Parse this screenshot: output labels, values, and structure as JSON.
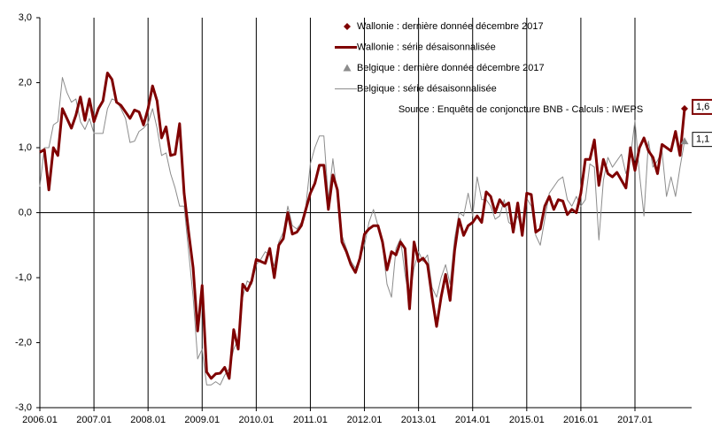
{
  "chart_data": {
    "type": "line",
    "annotation": "Source : Enquête de conjoncture BNB - Calculs : IWEPS",
    "categories": [
      "2006.01",
      null,
      null,
      null,
      null,
      null,
      null,
      null,
      null,
      null,
      null,
      null,
      "2007.01",
      null,
      null,
      null,
      null,
      null,
      null,
      null,
      null,
      null,
      null,
      null,
      "2008.01",
      null,
      null,
      null,
      null,
      null,
      null,
      null,
      null,
      null,
      null,
      null,
      "2009.01",
      null,
      null,
      null,
      null,
      null,
      null,
      null,
      null,
      null,
      null,
      null,
      "2010.01",
      null,
      null,
      null,
      null,
      null,
      null,
      null,
      null,
      null,
      null,
      null,
      "2011.01",
      null,
      null,
      null,
      null,
      null,
      null,
      null,
      null,
      null,
      null,
      null,
      "2012.01",
      null,
      null,
      null,
      null,
      null,
      null,
      null,
      null,
      null,
      null,
      null,
      "2013.01",
      null,
      null,
      null,
      null,
      null,
      null,
      null,
      null,
      null,
      null,
      null,
      "2014.01",
      null,
      null,
      null,
      null,
      null,
      null,
      null,
      null,
      null,
      null,
      null,
      "2015.01",
      null,
      null,
      null,
      null,
      null,
      null,
      null,
      null,
      null,
      null,
      null,
      "2016.01",
      null,
      null,
      null,
      null,
      null,
      null,
      null,
      null,
      null,
      null,
      null,
      "2017.01",
      null,
      null,
      null,
      null,
      null,
      null,
      null,
      null,
      null,
      null,
      null
    ],
    "ylim": [
      -3,
      3
    ],
    "yticks": [
      {
        "value": 3,
        "label": "3,0"
      },
      {
        "value": 2,
        "label": "2,0"
      },
      {
        "value": 1,
        "label": "1,0"
      },
      {
        "value": 0,
        "label": "0,0"
      },
      {
        "value": -1,
        "label": "-1,0"
      },
      {
        "value": -2,
        "label": "-2,0"
      },
      {
        "value": -3,
        "label": "-3,0"
      }
    ],
    "series": [
      {
        "name": "Wallonie : dernière donnée décembre 2017",
        "color": "#7f0000",
        "marker": "diamond",
        "values": [
          null,
          null,
          null,
          null,
          null,
          null,
          null,
          null,
          null,
          null,
          null,
          null,
          null,
          null,
          null,
          null,
          null,
          null,
          null,
          null,
          null,
          null,
          null,
          null,
          null,
          null,
          null,
          null,
          null,
          null,
          null,
          null,
          null,
          null,
          null,
          null,
          null,
          null,
          null,
          null,
          null,
          null,
          null,
          null,
          null,
          null,
          null,
          null,
          null,
          null,
          null,
          null,
          null,
          null,
          null,
          null,
          null,
          null,
          null,
          null,
          null,
          null,
          null,
          null,
          null,
          null,
          null,
          null,
          null,
          null,
          null,
          null,
          null,
          null,
          null,
          null,
          null,
          null,
          null,
          null,
          null,
          null,
          null,
          null,
          null,
          null,
          null,
          null,
          null,
          null,
          null,
          null,
          null,
          null,
          null,
          null,
          null,
          null,
          null,
          null,
          null,
          null,
          null,
          null,
          null,
          null,
          null,
          null,
          null,
          null,
          null,
          null,
          null,
          null,
          null,
          null,
          null,
          null,
          null,
          null,
          null,
          null,
          null,
          null,
          null,
          null,
          null,
          null,
          null,
          null,
          null,
          null,
          null,
          null,
          null,
          null,
          null,
          null,
          null,
          null,
          null,
          null,
          null,
          1.6
        ],
        "value_labels": [
          null,
          null,
          null,
          null,
          null,
          null,
          null,
          null,
          null,
          null,
          null,
          null,
          null,
          null,
          null,
          null,
          null,
          null,
          null,
          null,
          null,
          null,
          null,
          null,
          null,
          null,
          null,
          null,
          null,
          null,
          null,
          null,
          null,
          null,
          null,
          null,
          null,
          null,
          null,
          null,
          null,
          null,
          null,
          null,
          null,
          null,
          null,
          null,
          null,
          null,
          null,
          null,
          null,
          null,
          null,
          null,
          null,
          null,
          null,
          null,
          null,
          null,
          null,
          null,
          null,
          null,
          null,
          null,
          null,
          null,
          null,
          null,
          null,
          null,
          null,
          null,
          null,
          null,
          null,
          null,
          null,
          null,
          null,
          null,
          null,
          null,
          null,
          null,
          null,
          null,
          null,
          null,
          null,
          null,
          null,
          null,
          null,
          null,
          null,
          null,
          null,
          null,
          null,
          null,
          null,
          null,
          null,
          null,
          null,
          null,
          null,
          null,
          null,
          null,
          null,
          null,
          null,
          null,
          null,
          null,
          null,
          null,
          null,
          null,
          null,
          null,
          null,
          null,
          null,
          null,
          null,
          null,
          null,
          null,
          null,
          null,
          null,
          null,
          null,
          null,
          null,
          null,
          null,
          "1,6"
        ]
      },
      {
        "name": "Wallonie : série désaisonnalisée",
        "color": "#7f0000",
        "width": 3,
        "values": [
          0.93,
          0.97,
          0.35,
          1.0,
          0.88,
          1.6,
          1.45,
          1.3,
          1.5,
          1.78,
          1.42,
          1.75,
          1.4,
          1.6,
          1.72,
          2.15,
          2.05,
          1.7,
          1.65,
          1.55,
          1.45,
          1.58,
          1.55,
          1.35,
          1.6,
          1.95,
          1.72,
          1.15,
          1.32,
          0.88,
          0.9,
          1.37,
          0.3,
          -0.3,
          -0.85,
          -1.82,
          -1.12,
          -2.45,
          -2.55,
          -2.48,
          -2.47,
          -2.38,
          -2.55,
          -1.8,
          -2.1,
          -1.1,
          -1.2,
          -1.05,
          -0.72,
          -0.75,
          -0.78,
          -0.55,
          -1.0,
          -0.5,
          -0.4,
          0.0,
          -0.33,
          -0.3,
          -0.2,
          0.05,
          0.3,
          0.45,
          0.73,
          0.73,
          0.05,
          0.58,
          0.35,
          -0.45,
          -0.6,
          -0.8,
          -0.92,
          -0.7,
          -0.33,
          -0.25,
          -0.2,
          -0.2,
          -0.45,
          -0.88,
          -0.6,
          -0.65,
          -0.45,
          -0.55,
          -1.48,
          -0.45,
          -0.75,
          -0.7,
          -0.8,
          -1.3,
          -1.75,
          -1.3,
          -0.95,
          -1.35,
          -0.58,
          -0.1,
          -0.35,
          -0.2,
          -0.15,
          -0.05,
          -0.15,
          0.32,
          0.25,
          0.0,
          0.2,
          0.1,
          0.15,
          -0.3,
          0.15,
          -0.35,
          0.3,
          0.28,
          -0.3,
          -0.25,
          0.1,
          0.25,
          0.05,
          0.2,
          0.18,
          -0.03,
          0.05,
          0.0,
          0.3,
          0.82,
          0.82,
          1.12,
          0.42,
          0.82,
          0.6,
          0.55,
          0.62,
          0.5,
          0.38,
          1.0,
          0.65,
          1.0,
          1.15,
          0.95,
          0.85,
          0.6,
          1.05,
          1.0,
          0.95,
          1.25,
          0.88,
          1.6
        ]
      },
      {
        "name": "Belgique : dernière donnée décembre 2017",
        "color": "#8c8c8c",
        "marker": "triangle",
        "values": [
          null,
          null,
          null,
          null,
          null,
          null,
          null,
          null,
          null,
          null,
          null,
          null,
          null,
          null,
          null,
          null,
          null,
          null,
          null,
          null,
          null,
          null,
          null,
          null,
          null,
          null,
          null,
          null,
          null,
          null,
          null,
          null,
          null,
          null,
          null,
          null,
          null,
          null,
          null,
          null,
          null,
          null,
          null,
          null,
          null,
          null,
          null,
          null,
          null,
          null,
          null,
          null,
          null,
          null,
          null,
          null,
          null,
          null,
          null,
          null,
          null,
          null,
          null,
          null,
          null,
          null,
          null,
          null,
          null,
          null,
          null,
          null,
          null,
          null,
          null,
          null,
          null,
          null,
          null,
          null,
          null,
          null,
          null,
          null,
          null,
          null,
          null,
          null,
          null,
          null,
          null,
          null,
          null,
          null,
          null,
          null,
          null,
          null,
          null,
          null,
          null,
          null,
          null,
          null,
          null,
          null,
          null,
          null,
          null,
          null,
          null,
          null,
          null,
          null,
          null,
          null,
          null,
          null,
          null,
          null,
          null,
          null,
          null,
          null,
          null,
          null,
          null,
          null,
          null,
          null,
          null,
          null,
          null,
          null,
          null,
          null,
          null,
          null,
          null,
          null,
          null,
          null,
          null,
          1.1
        ],
        "value_labels": [
          null,
          null,
          null,
          null,
          null,
          null,
          null,
          null,
          null,
          null,
          null,
          null,
          null,
          null,
          null,
          null,
          null,
          null,
          null,
          null,
          null,
          null,
          null,
          null,
          null,
          null,
          null,
          null,
          null,
          null,
          null,
          null,
          null,
          null,
          null,
          null,
          null,
          null,
          null,
          null,
          null,
          null,
          null,
          null,
          null,
          null,
          null,
          null,
          null,
          null,
          null,
          null,
          null,
          null,
          null,
          null,
          null,
          null,
          null,
          null,
          null,
          null,
          null,
          null,
          null,
          null,
          null,
          null,
          null,
          null,
          null,
          null,
          null,
          null,
          null,
          null,
          null,
          null,
          null,
          null,
          null,
          null,
          null,
          null,
          null,
          null,
          null,
          null,
          null,
          null,
          null,
          null,
          null,
          null,
          null,
          null,
          null,
          null,
          null,
          null,
          null,
          null,
          null,
          null,
          null,
          null,
          null,
          null,
          null,
          null,
          null,
          null,
          null,
          null,
          null,
          null,
          null,
          null,
          null,
          null,
          null,
          null,
          null,
          null,
          null,
          null,
          null,
          null,
          null,
          null,
          null,
          null,
          null,
          null,
          null,
          null,
          null,
          null,
          null,
          null,
          null,
          null,
          null,
          "1,1"
        ]
      },
      {
        "name": "Belgique : série désaisonnalisée",
        "color": "#8c8c8c",
        "width": 1,
        "values": [
          0.4,
          1.0,
          1.0,
          1.35,
          1.4,
          2.08,
          1.85,
          1.7,
          1.75,
          1.4,
          1.28,
          1.45,
          1.22,
          1.22,
          1.22,
          1.6,
          1.75,
          1.72,
          1.6,
          1.45,
          1.08,
          1.1,
          1.25,
          1.3,
          1.38,
          1.6,
          1.3,
          0.88,
          0.92,
          0.6,
          0.38,
          0.1,
          0.1,
          -0.6,
          -1.3,
          -2.25,
          -2.1,
          -2.65,
          -2.65,
          -2.6,
          -2.65,
          -2.5,
          -2.4,
          -2.1,
          -1.95,
          -1.3,
          -1.05,
          -1.1,
          -0.8,
          -0.72,
          -0.6,
          -0.65,
          -0.82,
          -0.45,
          -0.3,
          0.1,
          -0.2,
          -0.25,
          -0.15,
          0.1,
          0.75,
          1.0,
          1.18,
          1.18,
          0.2,
          0.83,
          0.25,
          -0.35,
          -0.55,
          -0.75,
          -0.85,
          -0.7,
          -0.5,
          -0.15,
          0.05,
          -0.2,
          -0.5,
          -1.1,
          -1.3,
          -0.55,
          -0.4,
          -0.95,
          -1.35,
          -0.85,
          -0.6,
          -0.75,
          -0.65,
          -1.15,
          -1.3,
          -1.0,
          -0.8,
          -1.1,
          -0.4,
          0.0,
          -0.05,
          0.3,
          -0.05,
          0.55,
          0.2,
          0.2,
          0.1,
          -0.1,
          -0.05,
          0.2,
          -0.15,
          -0.2,
          -0.05,
          -0.3,
          0.22,
          0.1,
          -0.35,
          -0.5,
          -0.1,
          0.3,
          0.4,
          0.5,
          0.55,
          0.2,
          0.1,
          0.25,
          0.1,
          0.2,
          0.75,
          0.7,
          -0.42,
          0.5,
          0.85,
          0.7,
          0.8,
          0.9,
          0.6,
          0.85,
          1.42,
          0.6,
          -0.05,
          1.1,
          0.7,
          0.8,
          0.95,
          0.25,
          0.55,
          0.25,
          0.7,
          1.1
        ]
      }
    ]
  }
}
